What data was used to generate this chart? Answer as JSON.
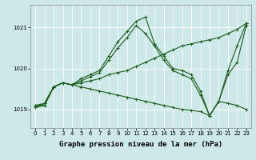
{
  "xlabel": "Graphe pression niveau de la mer (hPa)",
  "ylabel": "",
  "bg_color": "#cce8e8",
  "grid_color": "#ffffff",
  "line_color": "#1a5c1a",
  "marker": "+",
  "markersize": 3,
  "linewidth": 0.8,
  "xlim": [
    -0.5,
    23.5
  ],
  "ylim": [
    1018.55,
    1021.55
  ],
  "yticks": [
    1019,
    1020,
    1021
  ],
  "xticks": [
    0,
    1,
    2,
    3,
    4,
    5,
    6,
    7,
    8,
    9,
    10,
    11,
    12,
    13,
    14,
    15,
    16,
    17,
    18,
    19,
    20,
    21,
    22,
    23
  ],
  "tick_fontsize": 5.0,
  "xlabel_fontsize": 6.5,
  "series": [
    {
      "x": [
        0,
        1,
        2,
        3,
        4,
        5,
        6,
        7,
        8,
        9,
        10,
        11,
        12,
        13,
        14,
        15,
        16,
        17,
        18,
        19,
        20,
        21,
        22,
        23
      ],
      "y": [
        1019.1,
        1019.15,
        1019.55,
        1019.65,
        1019.6,
        1019.65,
        1019.7,
        1019.75,
        1019.85,
        1019.9,
        1019.95,
        1020.05,
        1020.15,
        1020.25,
        1020.35,
        1020.45,
        1020.55,
        1020.6,
        1020.65,
        1020.7,
        1020.75,
        1020.85,
        1020.95,
        1021.1
      ]
    },
    {
      "x": [
        0,
        1,
        2,
        3,
        4,
        5,
        6,
        7,
        8,
        9,
        10,
        11,
        12,
        13,
        14,
        15,
        16,
        17,
        18,
        19,
        20,
        21,
        22,
        23
      ],
      "y": [
        1019.1,
        1019.1,
        1019.55,
        1019.65,
        1019.6,
        1019.55,
        1019.5,
        1019.45,
        1019.4,
        1019.35,
        1019.3,
        1019.25,
        1019.2,
        1019.15,
        1019.1,
        1019.05,
        1019.0,
        1018.98,
        1018.95,
        1018.85,
        1019.2,
        1019.15,
        1019.1,
        1019.0
      ]
    },
    {
      "x": [
        0,
        1,
        2,
        3,
        4,
        5,
        6,
        7,
        8,
        9,
        10,
        11,
        12,
        13,
        14,
        15,
        16,
        17,
        18,
        19,
        20,
        21,
        22,
        23
      ],
      "y": [
        1019.05,
        1019.15,
        1019.55,
        1019.65,
        1019.6,
        1019.75,
        1019.85,
        1019.95,
        1020.3,
        1020.65,
        1020.9,
        1021.15,
        1021.25,
        1020.6,
        1020.3,
        1020.0,
        1019.95,
        1019.85,
        1019.45,
        1018.85,
        1019.2,
        1019.95,
        1020.55,
        1021.1
      ]
    },
    {
      "x": [
        0,
        1,
        2,
        3,
        4,
        5,
        6,
        7,
        8,
        9,
        10,
        11,
        12,
        13,
        14,
        15,
        16,
        17,
        18,
        19,
        20,
        21,
        22,
        23
      ],
      "y": [
        1019.05,
        1019.1,
        1019.55,
        1019.65,
        1019.6,
        1019.7,
        1019.8,
        1019.9,
        1020.2,
        1020.5,
        1020.75,
        1021.05,
        1020.85,
        1020.55,
        1020.2,
        1019.95,
        1019.85,
        1019.75,
        1019.35,
        1018.85,
        1019.2,
        1019.85,
        1020.15,
        1021.05
      ]
    }
  ]
}
